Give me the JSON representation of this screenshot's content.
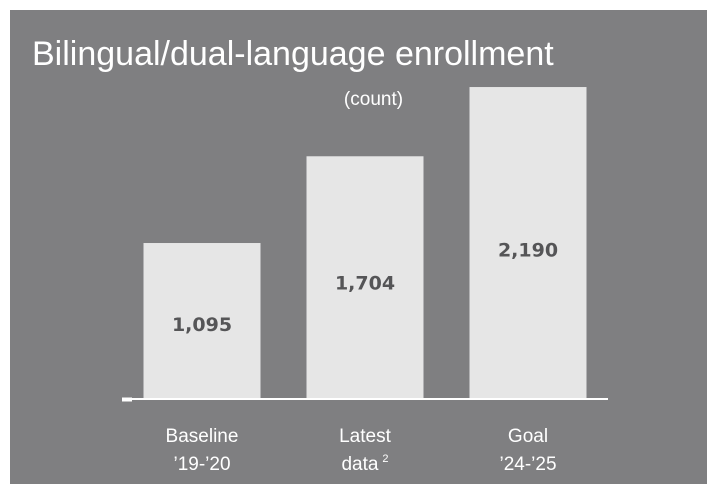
{
  "chart_data": {
    "type": "bar",
    "title": "Bilingual/dual-language enrollment",
    "subtitle": "(count)",
    "categories": [
      {
        "line1": "Baseline",
        "line2": "’19-’20",
        "sup": ""
      },
      {
        "line1": "Latest",
        "line2": "data",
        "sup": "2"
      },
      {
        "line1": "Goal",
        "line2": "’24-’25",
        "sup": ""
      }
    ],
    "values": [
      1095,
      1704,
      2190
    ],
    "value_labels": [
      "1,095",
      "1,704",
      "2,190"
    ],
    "ylim": [
      0,
      2450
    ],
    "grid": false,
    "legend": "none",
    "colors": {
      "background": "#7f7f81",
      "bar": "#e6e6e6",
      "value_text": "#555557",
      "text": "#ffffff",
      "axis": "#ffffff"
    }
  }
}
